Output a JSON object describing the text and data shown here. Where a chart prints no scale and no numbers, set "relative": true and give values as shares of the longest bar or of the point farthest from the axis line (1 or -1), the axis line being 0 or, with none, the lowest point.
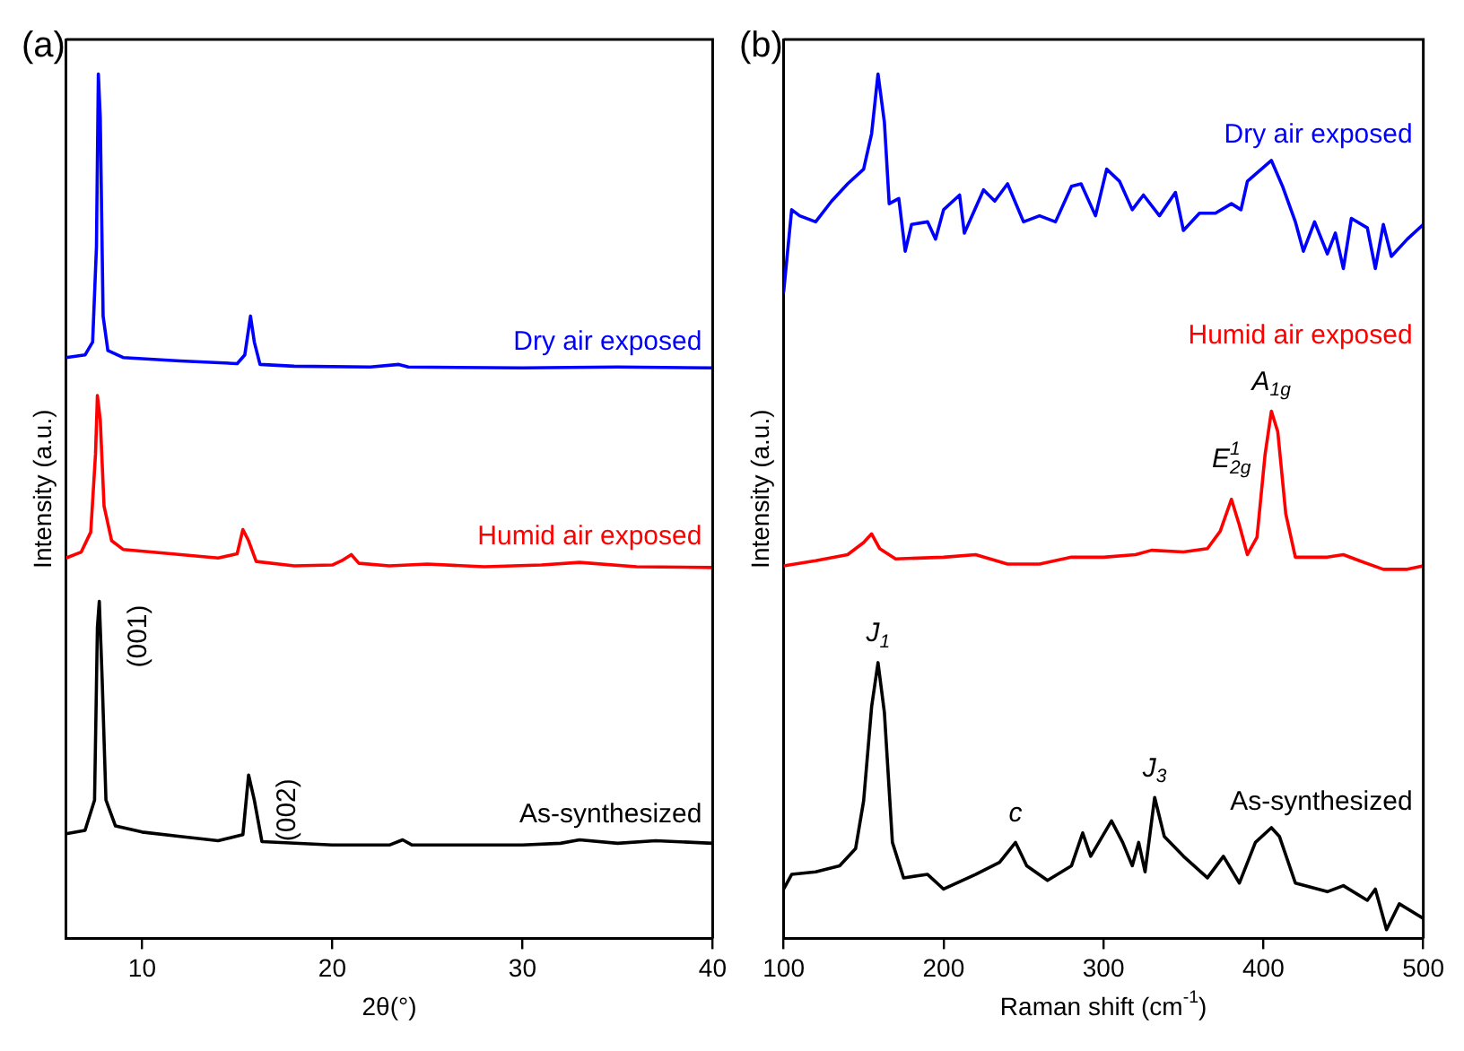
{
  "chart_data": [
    {
      "type": "line",
      "title": "(a)",
      "xlabel": "2θ(°)",
      "ylabel": "Intensity (a.u.)",
      "relative": true,
      "legend": false,
      "grid": false,
      "xlim": [
        6,
        40
      ],
      "xticks": [
        10,
        20,
        30,
        40
      ],
      "series": [
        {
          "name": "Dry air exposed",
          "color": "#0000ff",
          "x": [
            6.0,
            7.0,
            7.4,
            7.6,
            7.7,
            7.8,
            7.95,
            8.2,
            9,
            12,
            15.0,
            15.4,
            15.7,
            15.9,
            16.2,
            18,
            22,
            23.5,
            24,
            30,
            35,
            40
          ],
          "values": [
            0.672,
            0.675,
            0.69,
            0.8,
            1.0,
            0.95,
            0.72,
            0.68,
            0.672,
            0.668,
            0.665,
            0.675,
            0.72,
            0.69,
            0.664,
            0.662,
            0.661,
            0.664,
            0.661,
            0.66,
            0.661,
            0.66
          ]
        },
        {
          "name": "Humid air exposed",
          "color": "#ff0000",
          "x": [
            6.0,
            6.8,
            7.3,
            7.55,
            7.65,
            7.8,
            8.0,
            8.4,
            9,
            11,
            14,
            15.0,
            15.3,
            15.6,
            16,
            18,
            20,
            20.5,
            21.0,
            21.4,
            23,
            25,
            28,
            31,
            33,
            36,
            40
          ],
          "values": [
            0.44,
            0.447,
            0.47,
            0.56,
            0.628,
            0.6,
            0.5,
            0.46,
            0.45,
            0.446,
            0.44,
            0.445,
            0.473,
            0.46,
            0.436,
            0.431,
            0.432,
            0.437,
            0.444,
            0.434,
            0.431,
            0.433,
            0.43,
            0.432,
            0.435,
            0.43,
            0.429
          ]
        },
        {
          "name": "As-synthesized",
          "color": "#000000",
          "x": [
            6.0,
            7.0,
            7.5,
            7.65,
            7.75,
            7.9,
            8.1,
            8.6,
            10,
            12,
            14,
            15.3,
            15.6,
            15.9,
            16.3,
            20,
            23,
            23.7,
            24.2,
            30,
            32,
            33,
            35,
            37,
            40
          ],
          "values": [
            0.121,
            0.125,
            0.16,
            0.36,
            0.39,
            0.3,
            0.16,
            0.13,
            0.123,
            0.118,
            0.113,
            0.12,
            0.189,
            0.16,
            0.112,
            0.108,
            0.108,
            0.114,
            0.108,
            0.108,
            0.11,
            0.114,
            0.11,
            0.113,
            0.11
          ]
        }
      ],
      "annotations": [
        {
          "text": "(001)",
          "x": 7.75,
          "y": 0.39
        },
        {
          "text": "(002)",
          "x": 15.6,
          "y": 0.189
        }
      ]
    },
    {
      "type": "line",
      "title": "(b)",
      "xlabel": "Raman shift (cm$^{-1}$)",
      "ylabel": "Intensity (a.u.)",
      "relative": true,
      "legend": false,
      "grid": false,
      "xlim": [
        100,
        500
      ],
      "xticks": [
        100,
        200,
        300,
        400,
        500
      ],
      "series": [
        {
          "name": "Dry air exposed",
          "color": "#0000ff",
          "x": [
            100,
            105,
            110,
            120,
            130,
            140,
            150,
            155,
            159,
            163,
            166,
            172,
            176,
            180,
            190,
            195,
            200,
            210,
            213,
            225,
            232,
            240,
            250,
            260,
            270,
            280,
            286,
            295,
            302,
            310,
            318,
            325,
            335,
            345,
            350,
            360,
            370,
            380,
            386,
            390,
            405,
            412,
            420,
            425,
            432,
            440,
            445,
            450,
            455,
            465,
            470,
            475,
            480,
            490,
            500
          ],
          "values": [
            0.748,
            0.843,
            0.836,
            0.829,
            0.853,
            0.873,
            0.89,
            0.931,
            1.0,
            0.944,
            0.85,
            0.856,
            0.795,
            0.826,
            0.829,
            0.809,
            0.843,
            0.86,
            0.816,
            0.866,
            0.853,
            0.873,
            0.829,
            0.836,
            0.829,
            0.87,
            0.873,
            0.836,
            0.89,
            0.876,
            0.843,
            0.86,
            0.836,
            0.863,
            0.819,
            0.839,
            0.839,
            0.85,
            0.843,
            0.876,
            0.9,
            0.87,
            0.829,
            0.795,
            0.829,
            0.792,
            0.816,
            0.775,
            0.833,
            0.822,
            0.775,
            0.826,
            0.789,
            0.809,
            0.826
          ]
        },
        {
          "name": "Humid air exposed",
          "color": "#ff0000",
          "x": [
            100,
            120,
            140,
            150,
            155,
            160,
            170,
            200,
            220,
            240,
            260,
            280,
            300,
            320,
            330,
            350,
            365,
            373,
            380,
            385,
            390,
            396,
            401,
            405,
            409,
            414,
            420,
            440,
            450,
            460,
            475,
            490,
            500
          ],
          "values": [
            0.431,
            0.437,
            0.444,
            0.458,
            0.468,
            0.451,
            0.439,
            0.441,
            0.444,
            0.433,
            0.433,
            0.441,
            0.441,
            0.444,
            0.449,
            0.447,
            0.451,
            0.471,
            0.508,
            0.478,
            0.444,
            0.464,
            0.559,
            0.61,
            0.586,
            0.491,
            0.441,
            0.441,
            0.444,
            0.437,
            0.427,
            0.427,
            0.431
          ]
        },
        {
          "name": "As-synthesized",
          "color": "#000000",
          "x": [
            100,
            105,
            120,
            135,
            145,
            150,
            155,
            159,
            163,
            168,
            175,
            190,
            200,
            220,
            235,
            245,
            252,
            265,
            280,
            287,
            292,
            305,
            312,
            318,
            322,
            326,
            332,
            338,
            350,
            365,
            375,
            385,
            395,
            405,
            410,
            420,
            440,
            450,
            465,
            470,
            477,
            485,
            500
          ],
          "values": [
            0.057,
            0.074,
            0.077,
            0.084,
            0.104,
            0.159,
            0.268,
            0.319,
            0.261,
            0.111,
            0.07,
            0.074,
            0.057,
            0.074,
            0.088,
            0.111,
            0.084,
            0.067,
            0.084,
            0.122,
            0.095,
            0.136,
            0.111,
            0.084,
            0.111,
            0.077,
            0.163,
            0.118,
            0.095,
            0.07,
            0.095,
            0.064,
            0.111,
            0.128,
            0.118,
            0.064,
            0.054,
            0.061,
            0.044,
            0.057,
            0.01,
            0.04,
            0.023
          ]
        }
      ],
      "annotations": [
        {
          "text": "J$_{1}$",
          "x": 159,
          "y": 0.319
        },
        {
          "text": "c",
          "x": 245,
          "y": 0.111
        },
        {
          "text": "J$_{3}$",
          "x": 332,
          "y": 0.163
        },
        {
          "text": "E$^{1}$$_{2g}$",
          "x": 380,
          "y": 0.508
        },
        {
          "text": "A$_{1g}$",
          "x": 405,
          "y": 0.61
        }
      ]
    }
  ]
}
